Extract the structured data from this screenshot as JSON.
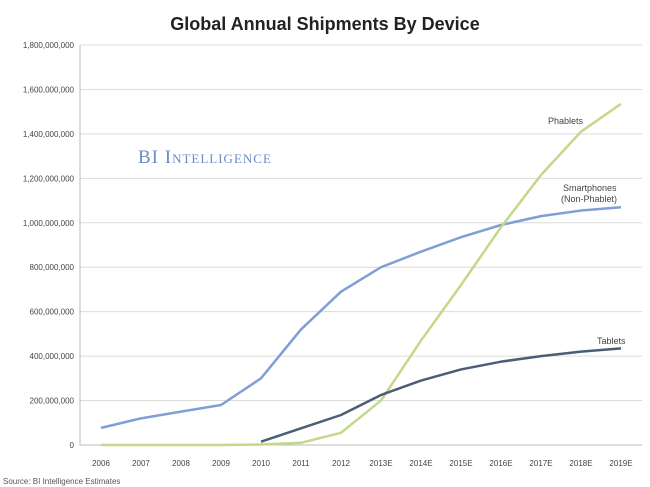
{
  "chart_data": {
    "type": "line",
    "title": "Global Annual Shipments By Device",
    "xlabel": "",
    "ylabel": "",
    "categories": [
      "2006",
      "2007",
      "2008",
      "2009",
      "2010",
      "2011",
      "2012",
      "2013E",
      "2014E",
      "2015E",
      "2016E",
      "2017E",
      "2018E",
      "2019E"
    ],
    "ylim": [
      0,
      1800000000
    ],
    "yticks": [
      "0",
      "200,000,000",
      "400,000,000",
      "600,000,000",
      "800,000,000",
      "1,000,000,000",
      "1,200,000,000",
      "1,400,000,000",
      "1,600,000,000",
      "1,800,000,000"
    ],
    "grid": true,
    "series": [
      {
        "name": "Smartphones (Non-Phablet)",
        "color": "#7f9fd6",
        "values": [
          77000000,
          120000000,
          150000000,
          180000000,
          300000000,
          520000000,
          690000000,
          800000000,
          870000000,
          935000000,
          990000000,
          1030000000,
          1055000000,
          1070000000
        ]
      },
      {
        "name": "Phablets",
        "color": "#c3d88a",
        "values": [
          0,
          0,
          0,
          0,
          2000000,
          10000000,
          55000000,
          200000000,
          470000000,
          720000000,
          980000000,
          1215000000,
          1410000000,
          1535000000
        ]
      },
      {
        "name": "Tablets",
        "color": "#4a5e78",
        "values": [
          null,
          null,
          null,
          null,
          15000000,
          75000000,
          135000000,
          225000000,
          290000000,
          340000000,
          375000000,
          400000000,
          420000000,
          435000000
        ]
      }
    ],
    "series_labels": [
      "Phablets",
      "Smartphones",
      "(Non-Phablet)",
      "Tablets"
    ],
    "watermark": "BI Intelligence",
    "source": "Source: BI Intelligence Estimates"
  }
}
